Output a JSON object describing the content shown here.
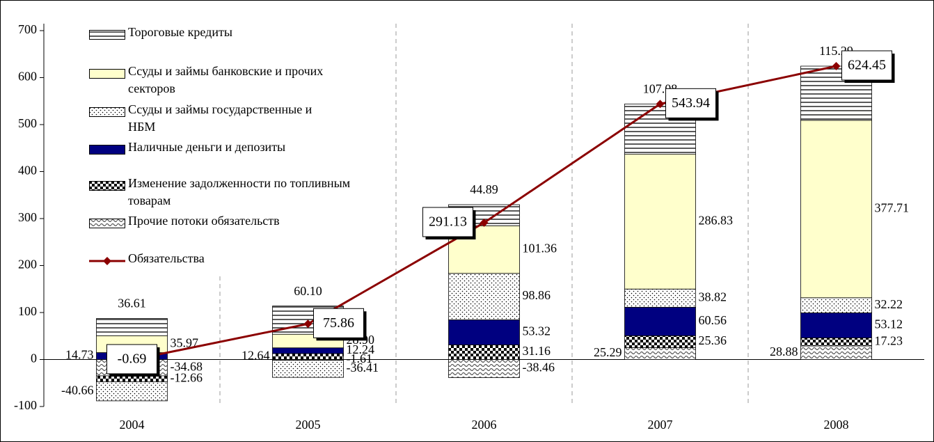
{
  "chart_data": {
    "type": "stacked_bar_line",
    "categories": [
      "2004",
      "2005",
      "2006",
      "2007",
      "2008"
    ],
    "series": [
      {
        "name": "Тороговые кредиты",
        "color": "#ffffff",
        "values": [
          36.61,
          60.1,
          44.89,
          107.08,
          115.29
        ],
        "value_labels": [
          "36.61",
          "60.10",
          "44.89",
          "107.08",
          "115.29"
        ]
      },
      {
        "name": "Ссуды и займы банковские и прочих секторов",
        "color": "#ffffcc",
        "values": [
          35.97,
          28.9,
          101.36,
          286.83,
          377.71
        ],
        "value_labels": [
          "35.97",
          "28.90",
          "101.36",
          "286.83",
          "377.71"
        ]
      },
      {
        "name": "Ссуды и займы государственные и НБМ",
        "color": "#ffffff",
        "values": [
          -40.66,
          -36.41,
          98.86,
          38.82,
          32.22
        ],
        "value_labels": [
          "-40.66",
          "-36.41",
          "98.86",
          "38.82",
          "32.22"
        ]
      },
      {
        "name": "Наличные деньги и депозиты",
        "color": "#000080",
        "values": [
          14.73,
          12.24,
          53.32,
          60.56,
          53.12
        ],
        "value_labels": [
          "14.73",
          "12.24",
          "53.32",
          "60.56",
          "53.12"
        ]
      },
      {
        "name": "Изменение задолженности по топливным товарам",
        "color": "#000000",
        "values": [
          -12.66,
          12.64,
          31.16,
          25.36,
          17.23
        ],
        "value_labels": [
          "-12.66",
          "12.64",
          "31.16",
          "25.36",
          "17.23"
        ]
      },
      {
        "name": "Прочие потоки обязательств",
        "color": "#808080",
        "values": [
          -34.68,
          -1.61,
          -38.46,
          25.29,
          28.88
        ],
        "value_labels": [
          "-34.68",
          "-1.61",
          "-38.46",
          "25.29",
          "28.88"
        ]
      },
      {
        "name": "Обязательства",
        "color": "#8b0000",
        "type": "line",
        "values": [
          -0.69,
          75.86,
          291.13,
          543.94,
          624.45
        ],
        "value_labels": [
          "-0.69",
          "75.86",
          "291.13",
          "543.94",
          "624.45"
        ]
      }
    ],
    "ylim": [
      -100,
      700
    ],
    "yticks": [
      -100,
      0,
      100,
      200,
      300,
      400,
      500,
      600,
      700
    ],
    "grid": false
  }
}
